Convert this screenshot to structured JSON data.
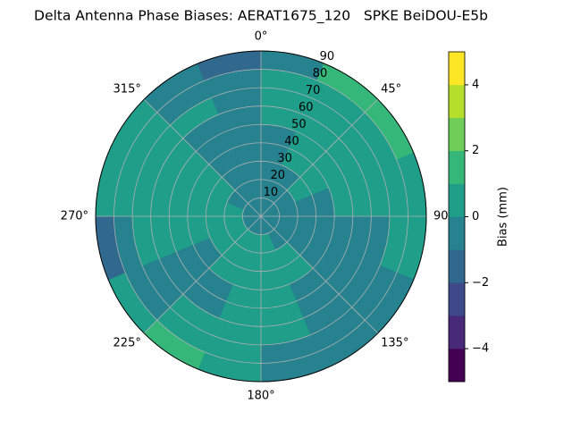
{
  "chart_data": {
    "type": "polar_contour",
    "title": "Delta Antenna Phase Biases: AERAT1675_120   SPKE BeiDOU-E5b",
    "azimuth_bins": [
      0,
      22.5,
      45,
      67.5,
      90,
      112.5,
      135,
      157.5,
      180,
      202.5,
      225,
      247.5,
      270,
      292.5,
      315,
      337.5,
      360
    ],
    "zenith_bins": [
      0,
      10,
      20,
      30,
      40,
      50,
      60,
      70,
      80,
      90
    ],
    "z": [
      [
        -0.5,
        -0.5,
        -0.5,
        -0.5,
        -0.5,
        0.5,
        0.5,
        0.5,
        -0.5
      ],
      [
        -0.5,
        -0.5,
        -0.5,
        0.5,
        0.5,
        0.5,
        0.5,
        0.5,
        1.5
      ],
      [
        -0.5,
        -0.5,
        0.5,
        0.5,
        0.5,
        0.5,
        0.5,
        0.5,
        1.5
      ],
      [
        -0.5,
        -0.5,
        -0.5,
        -0.5,
        0.5,
        0.5,
        0.5,
        0.5,
        0.5
      ],
      [
        -0.5,
        -0.5,
        -0.5,
        -0.5,
        -0.5,
        -0.5,
        -0.5,
        0.5,
        0.5
      ],
      [
        -0.5,
        -0.5,
        -0.5,
        -0.5,
        -0.5,
        -0.5,
        -0.5,
        -0.5,
        -0.5
      ],
      [
        -0.5,
        -0.5,
        0.5,
        0.5,
        -0.5,
        -0.5,
        -0.5,
        -0.5,
        -0.5
      ],
      [
        -0.5,
        0.5,
        0.5,
        0.5,
        0.5,
        0.5,
        0.5,
        -0.5,
        -0.5
      ],
      [
        -0.5,
        0.5,
        0.5,
        0.5,
        0.5,
        0.5,
        0.5,
        0.5,
        0.5
      ],
      [
        -0.5,
        0.5,
        0.5,
        0.5,
        -0.5,
        -0.5,
        0.5,
        0.5,
        1.5
      ],
      [
        -0.5,
        0.5,
        0.5,
        -0.5,
        -0.5,
        -0.5,
        -0.5,
        -0.5,
        0.5
      ],
      [
        -0.5,
        0.5,
        0.5,
        0.5,
        0.5,
        0.5,
        0.5,
        -0.5,
        -1.5
      ],
      [
        -0.5,
        0.5,
        0.5,
        0.5,
        0.5,
        0.5,
        0.5,
        0.5,
        0.5
      ],
      [
        -0.5,
        -0.5,
        0.5,
        0.5,
        0.5,
        0.5,
        0.5,
        0.5,
        0.5
      ],
      [
        -0.5,
        -0.5,
        -0.5,
        -0.5,
        -0.5,
        -0.5,
        0.5,
        -0.5,
        -0.5
      ],
      [
        -0.5,
        -0.5,
        -0.5,
        -0.5,
        -0.5,
        -0.5,
        -0.5,
        -0.5,
        -1.5
      ]
    ],
    "levels": [
      -5,
      -4,
      -3,
      -2,
      -1,
      0,
      1,
      2,
      3,
      4,
      5
    ],
    "colors": [
      "#440154",
      "#482878",
      "#3e4989",
      "#31688e",
      "#26828e",
      "#1f9e89",
      "#35b779",
      "#6ece58",
      "#b5de2b",
      "#fde725"
    ],
    "thetaticks": [
      {
        "value": 0,
        "label": "0°"
      },
      {
        "value": 45,
        "label": "45°"
      },
      {
        "value": 90,
        "label": "90°"
      },
      {
        "value": 135,
        "label": "135°"
      },
      {
        "value": 180,
        "label": "180°"
      },
      {
        "value": 225,
        "label": "225°"
      },
      {
        "value": 270,
        "label": "270°"
      },
      {
        "value": 315,
        "label": "315°"
      }
    ],
    "rlim": [
      0,
      90
    ],
    "rticks": [
      10,
      20,
      30,
      40,
      50,
      60,
      70,
      80,
      90
    ],
    "grid": true,
    "colorbar_label": "Bias (mm)",
    "colorbar_ticks": [
      {
        "value": -4,
        "label": "−4"
      },
      {
        "value": -2,
        "label": "−2"
      },
      0,
      2,
      4
    ]
  }
}
